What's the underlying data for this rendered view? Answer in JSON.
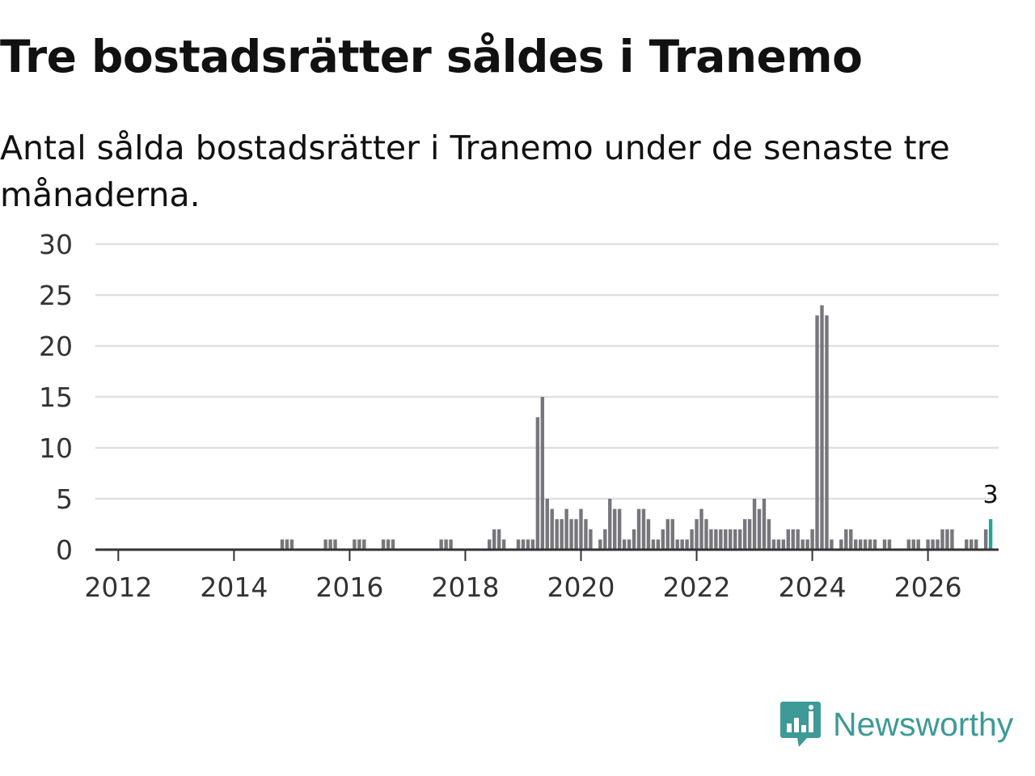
{
  "title": "Tre bostadsrätter såldes i Tranemo",
  "subtitle": "Antal sålda bostadsrätter i Tranemo under de senaste tre månaderna.",
  "brand": {
    "name": "Newsworthy",
    "icon": "newsworthy-logo-icon",
    "color": "#3d9a96"
  },
  "colors": {
    "bar": "#77767c",
    "highlight": "#23a596",
    "grid": "#e0e0e0",
    "axis": "#333333"
  },
  "chart_data": {
    "type": "bar",
    "title": "Tre bostadsrätter såldes i Tranemo",
    "xlabel": "",
    "ylabel": "",
    "ylim": [
      0,
      30
    ],
    "yticks": [
      0,
      5,
      10,
      15,
      20,
      25,
      30
    ],
    "xticks": [
      "2012",
      "2014",
      "2016",
      "2018",
      "2020",
      "2022",
      "2024",
      "2026"
    ],
    "start_month": "2011-09",
    "highlight_label": "3",
    "values": [
      0,
      0,
      0,
      0,
      0,
      0,
      0,
      0,
      0,
      0,
      0,
      0,
      0,
      0,
      0,
      0,
      0,
      0,
      0,
      0,
      0,
      0,
      0,
      0,
      0,
      0,
      0,
      0,
      0,
      0,
      0,
      0,
      0,
      0,
      0,
      0,
      0,
      0,
      1,
      1,
      1,
      0,
      0,
      0,
      0,
      0,
      0,
      1,
      1,
      1,
      0,
      0,
      0,
      1,
      1,
      1,
      0,
      0,
      0,
      1,
      1,
      1,
      0,
      0,
      0,
      0,
      0,
      0,
      0,
      0,
      0,
      1,
      1,
      1,
      0,
      0,
      0,
      0,
      0,
      0,
      0,
      1,
      2,
      2,
      1,
      0,
      0,
      1,
      1,
      1,
      1,
      13,
      15,
      5,
      4,
      3,
      3,
      4,
      3,
      3,
      4,
      3,
      2,
      0,
      1,
      2,
      5,
      4,
      4,
      1,
      1,
      2,
      4,
      4,
      3,
      1,
      1,
      2,
      3,
      3,
      1,
      1,
      1,
      2,
      3,
      4,
      3,
      2,
      2,
      2,
      2,
      2,
      2,
      2,
      3,
      3,
      5,
      4,
      5,
      3,
      1,
      1,
      1,
      2,
      2,
      2,
      1,
      1,
      2,
      23,
      24,
      23,
      1,
      0,
      1,
      2,
      2,
      1,
      1,
      1,
      1,
      1,
      0,
      1,
      1,
      0,
      0,
      0,
      1,
      1,
      1,
      0,
      1,
      1,
      1,
      2,
      2,
      2,
      0,
      0,
      1,
      1,
      1,
      0,
      2,
      3
    ]
  }
}
